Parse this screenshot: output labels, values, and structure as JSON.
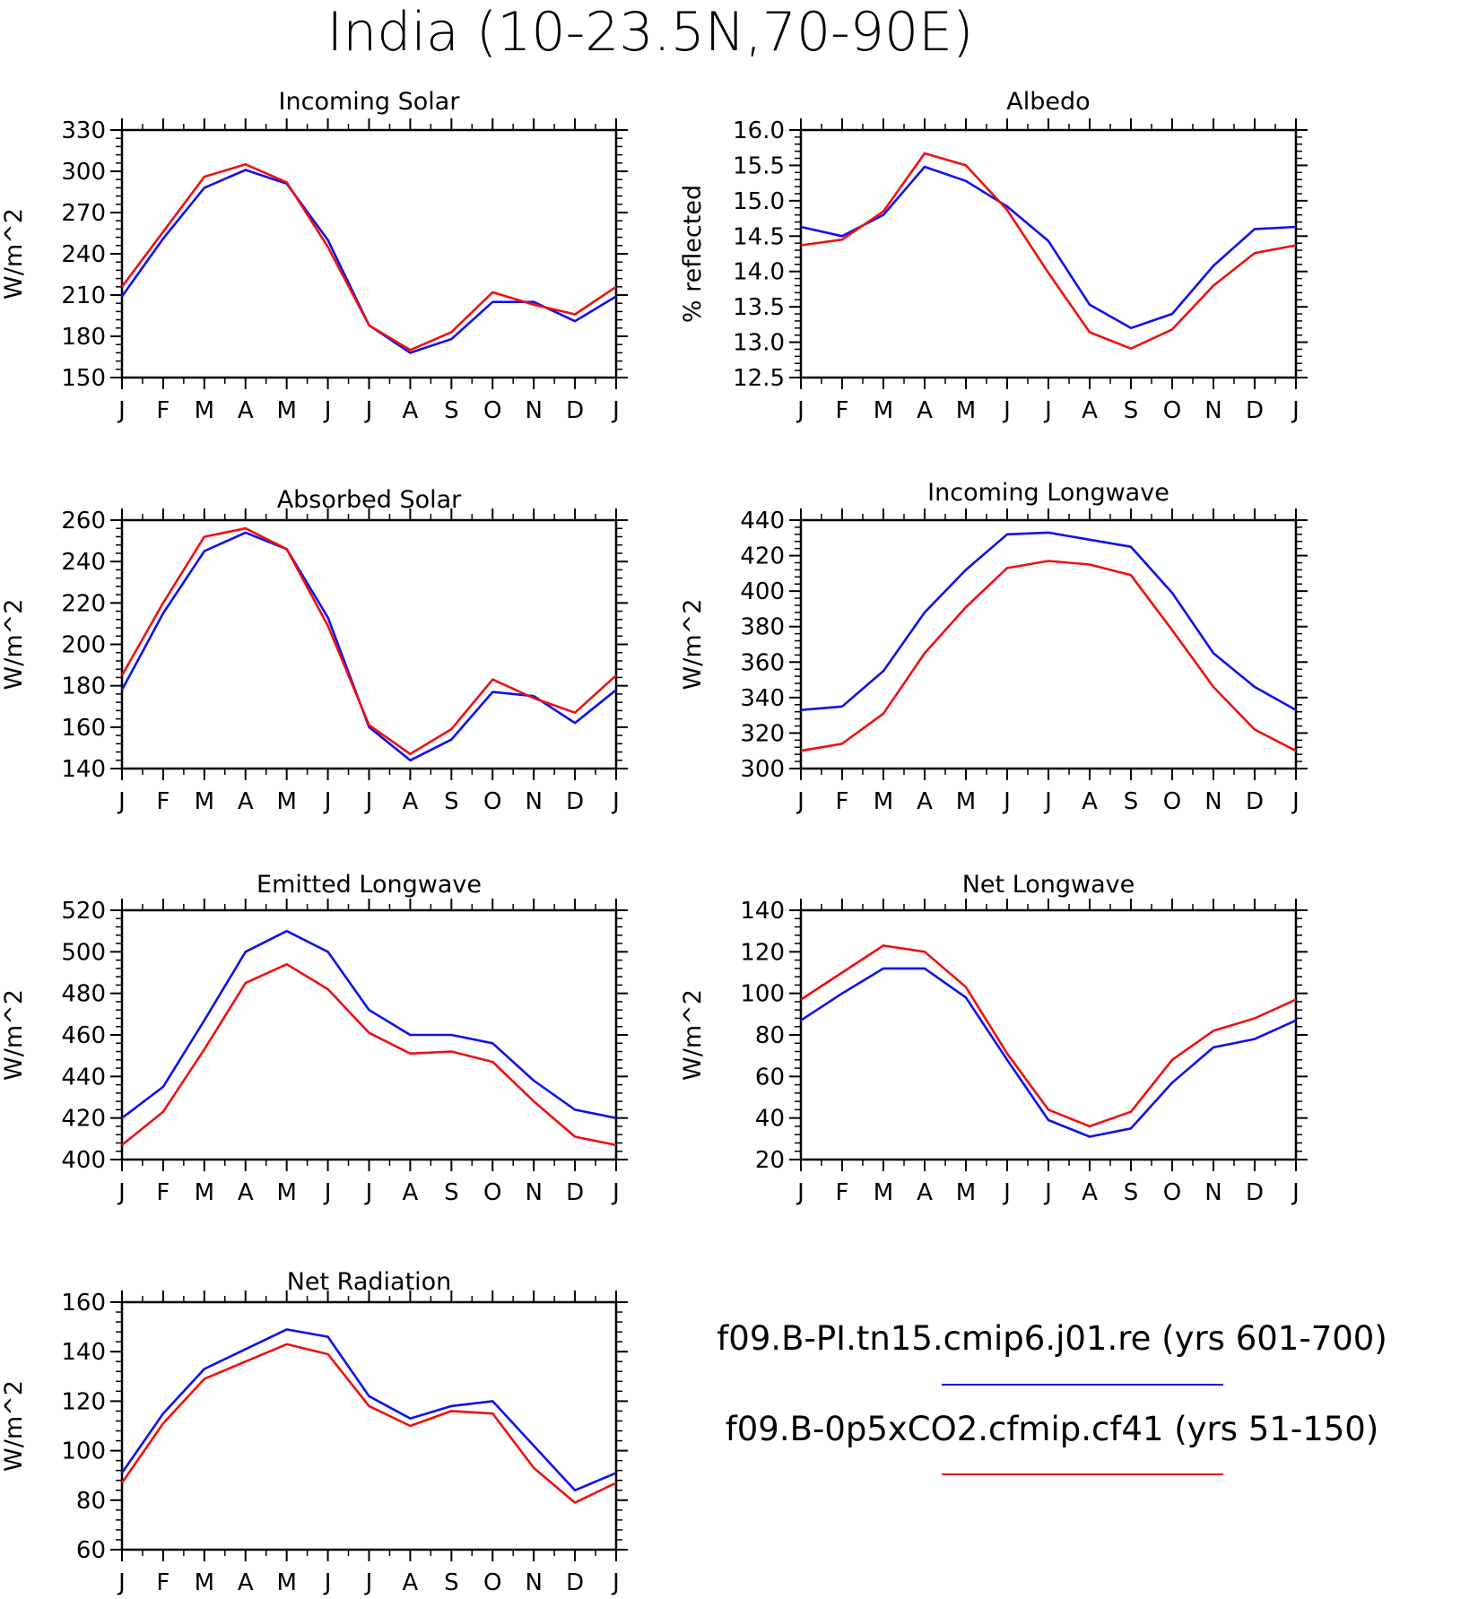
{
  "title": "India (10-23.5N,70-90E)",
  "colors": {
    "series1": "#1010f0",
    "series2": "#f01010"
  },
  "legend": {
    "entries": [
      {
        "label": "f09.B-PI.tn15.cmip6.j01.re (yrs 601-700)",
        "color": "#1010f0"
      },
      {
        "label": "f09.B-0p5xCO2.cfmip.cf41 (yrs 51-150)",
        "color": "#f01010"
      }
    ]
  },
  "chart_data": [
    {
      "type": "line",
      "title": "Incoming Solar",
      "ylabel": "W/m^2",
      "categories": [
        "J",
        "F",
        "M",
        "A",
        "M",
        "J",
        "J",
        "A",
        "S",
        "O",
        "N",
        "D",
        "J"
      ],
      "ylim": [
        150,
        330
      ],
      "yticks": [
        150,
        180,
        210,
        240,
        270,
        300,
        330
      ],
      "series": [
        {
          "values": [
            209,
            251,
            288,
            301,
            291,
            250,
            188,
            168,
            178,
            205,
            205,
            191,
            209
          ]
        },
        {
          "values": [
            216,
            256,
            296,
            305,
            292,
            245,
            188,
            170,
            183,
            212,
            203,
            196,
            216
          ]
        }
      ]
    },
    {
      "type": "line",
      "title": "Albedo",
      "ylabel": "% reflected",
      "categories": [
        "J",
        "F",
        "M",
        "A",
        "M",
        "J",
        "J",
        "A",
        "S",
        "O",
        "N",
        "D",
        "J"
      ],
      "ylim": [
        12.5,
        16.0
      ],
      "yticks": [
        "12.5",
        "13.0",
        "13.5",
        "14.0",
        "14.5",
        "15.0",
        "15.5",
        "16.0"
      ],
      "series": [
        {
          "values": [
            14.63,
            14.5,
            14.8,
            15.48,
            15.28,
            14.92,
            14.43,
            13.53,
            13.2,
            13.4,
            14.08,
            14.6,
            14.63
          ]
        },
        {
          "values": [
            14.37,
            14.45,
            14.85,
            15.67,
            15.5,
            14.87,
            13.98,
            13.14,
            12.91,
            13.18,
            13.8,
            14.26,
            14.37
          ]
        }
      ]
    },
    {
      "type": "line",
      "title": "Absorbed Solar",
      "ylabel": "W/m^2",
      "categories": [
        "J",
        "F",
        "M",
        "A",
        "M",
        "J",
        "J",
        "A",
        "S",
        "O",
        "N",
        "D",
        "J"
      ],
      "ylim": [
        140,
        260
      ],
      "yticks": [
        140,
        160,
        180,
        200,
        220,
        240,
        260
      ],
      "series": [
        {
          "values": [
            178,
            215,
            245,
            254,
            246,
            213,
            160,
            144,
            154,
            177,
            175,
            162,
            178
          ]
        },
        {
          "values": [
            185,
            220,
            252,
            256,
            246,
            209,
            161,
            147,
            159,
            183,
            174,
            167,
            185
          ]
        }
      ]
    },
    {
      "type": "line",
      "title": "Incoming Longwave",
      "ylabel": "W/m^2",
      "categories": [
        "J",
        "F",
        "M",
        "A",
        "M",
        "J",
        "J",
        "A",
        "S",
        "O",
        "N",
        "D",
        "J"
      ],
      "ylim": [
        300,
        440
      ],
      "yticks": [
        300,
        320,
        340,
        360,
        380,
        400,
        420,
        440
      ],
      "series": [
        {
          "values": [
            333,
            335,
            355,
            388,
            412,
            432,
            433,
            429,
            425,
            399,
            365,
            346,
            333
          ]
        },
        {
          "values": [
            310,
            314,
            331,
            365,
            391,
            413,
            417,
            415,
            409,
            378,
            346,
            322,
            310
          ]
        }
      ]
    },
    {
      "type": "line",
      "title": "Emitted Longwave",
      "ylabel": "W/m^2",
      "categories": [
        "J",
        "F",
        "M",
        "A",
        "M",
        "J",
        "J",
        "A",
        "S",
        "O",
        "N",
        "D",
        "J"
      ],
      "ylim": [
        400,
        520
      ],
      "yticks": [
        400,
        420,
        440,
        460,
        480,
        500,
        520
      ],
      "series": [
        {
          "values": [
            420,
            435,
            467,
            500,
            510,
            500,
            472,
            460,
            460,
            456,
            438,
            424,
            420
          ]
        },
        {
          "values": [
            407,
            423,
            453,
            485,
            494,
            482,
            461,
            451,
            452,
            447,
            428,
            411,
            407
          ]
        }
      ]
    },
    {
      "type": "line",
      "title": "Net Longwave",
      "ylabel": "W/m^2",
      "categories": [
        "J",
        "F",
        "M",
        "A",
        "M",
        "J",
        "J",
        "A",
        "S",
        "O",
        "N",
        "D",
        "J"
      ],
      "ylim": [
        20,
        140
      ],
      "yticks": [
        20,
        40,
        60,
        80,
        100,
        120,
        140
      ],
      "series": [
        {
          "values": [
            87,
            100,
            112,
            112,
            98,
            68,
            39,
            31,
            35,
            57,
            74,
            78,
            87
          ]
        },
        {
          "values": [
            97,
            110,
            123,
            120,
            103,
            71,
            44,
            36,
            43,
            68,
            82,
            88,
            97
          ]
        }
      ]
    },
    {
      "type": "line",
      "title": "Net Radiation",
      "ylabel": "W/m^2",
      "categories": [
        "J",
        "F",
        "M",
        "A",
        "M",
        "J",
        "J",
        "A",
        "S",
        "O",
        "N",
        "D",
        "J"
      ],
      "ylim": [
        60,
        160
      ],
      "yticks": [
        60,
        80,
        100,
        120,
        140,
        160
      ],
      "series": [
        {
          "values": [
            91,
            115,
            133,
            141,
            149,
            146,
            122,
            113,
            118,
            120,
            102,
            84,
            91
          ]
        },
        {
          "values": [
            87,
            111,
            129,
            136,
            143,
            139,
            118,
            110,
            116,
            115,
            93,
            79,
            87
          ]
        }
      ]
    }
  ]
}
